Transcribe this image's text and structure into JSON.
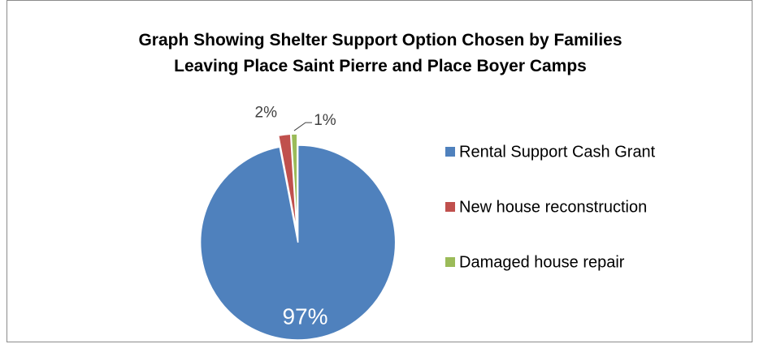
{
  "chart_data": {
    "type": "pie",
    "title": "Graph Showing Shelter Support Option Chosen by Families Leaving Place Saint Pierre and Place Boyer Camps",
    "categories": [
      "Rental Support Cash Grant",
      "New house reconstruction",
      "Damaged house repair"
    ],
    "values": [
      97,
      2,
      1
    ],
    "value_labels": [
      "97%",
      "2%",
      "1%"
    ],
    "colors": [
      "#4f81bd",
      "#c0504d",
      "#9bbb59"
    ],
    "legend": "right"
  }
}
